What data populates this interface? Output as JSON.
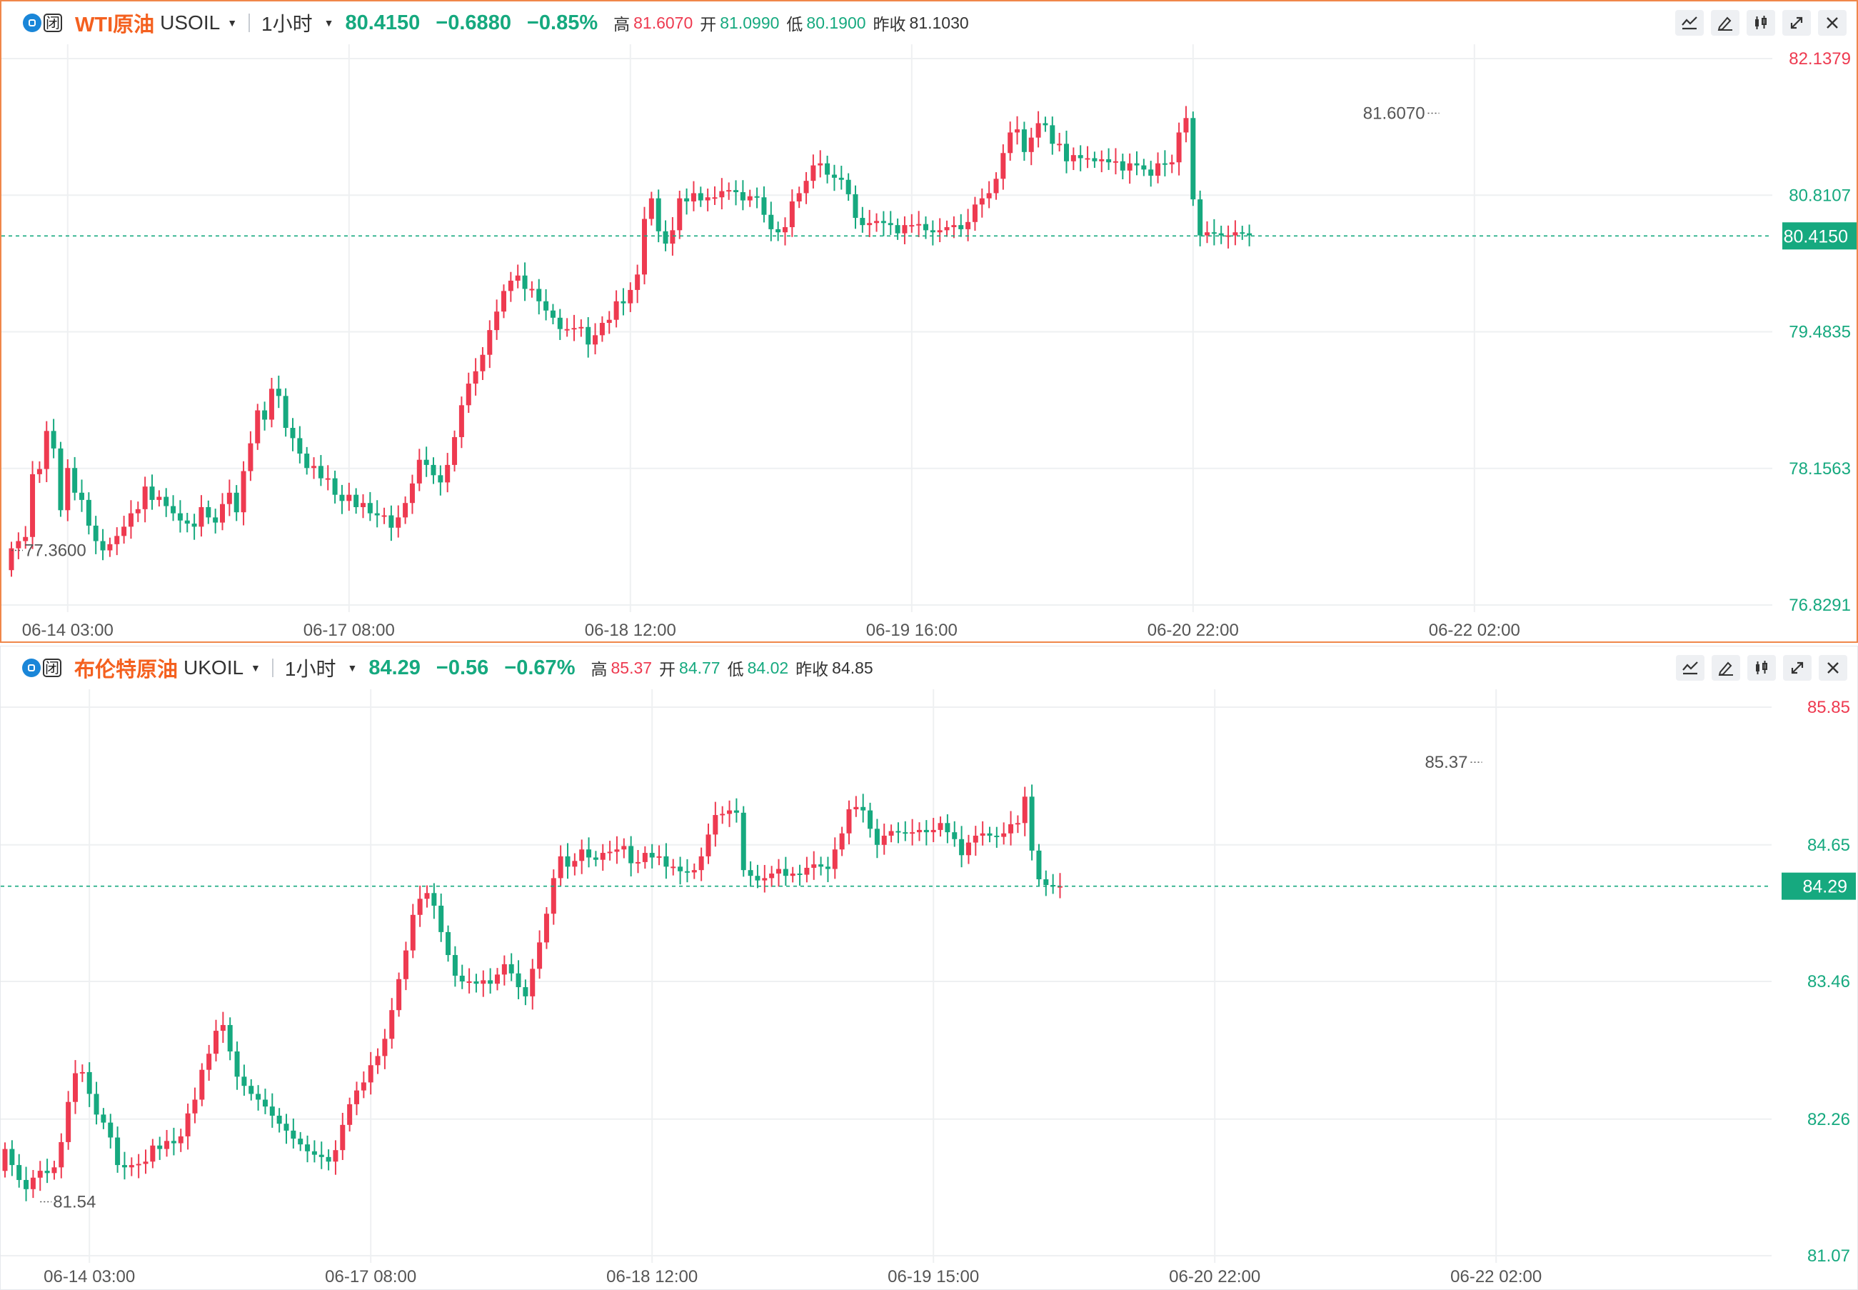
{
  "colors": {
    "up": "#ee3a50",
    "down": "#16a97f",
    "accent": "#f4601f",
    "grid": "#eef0f2",
    "hline": "#16a97f"
  },
  "badge": {
    "status_text": "闭",
    "icon": "market-status-icon"
  },
  "toolbar_icons": [
    "indicator-icon",
    "draw-pen-icon",
    "candlestick-type-icon",
    "expand-icon",
    "close-icon"
  ],
  "panels": [
    {
      "name": "WTI原油",
      "symbol": "USOIL",
      "interval": "1小时",
      "price": "80.4150",
      "change": "−0.6880",
      "change_pct": "−0.85%",
      "stats": [
        {
          "label": "高",
          "value": "81.6070",
          "tone": "red"
        },
        {
          "label": "开",
          "value": "81.0990",
          "tone": "green"
        },
        {
          "label": "低",
          "value": "80.1900",
          "tone": "green"
        },
        {
          "label": "昨收",
          "value": "81.1030",
          "tone": "gray"
        }
      ]
    },
    {
      "name": "布伦特原油",
      "symbol": "UKOIL",
      "interval": "1小时",
      "price": "84.29",
      "change": "−0.56",
      "change_pct": "−0.67%",
      "stats": [
        {
          "label": "高",
          "value": "85.37",
          "tone": "red"
        },
        {
          "label": "开",
          "value": "84.77",
          "tone": "green"
        },
        {
          "label": "低",
          "value": "84.02",
          "tone": "green"
        },
        {
          "label": "昨收",
          "value": "84.85",
          "tone": "gray"
        }
      ]
    }
  ],
  "chart_data": [
    {
      "type": "candlestick",
      "symbol": "USOIL",
      "ylim": [
        76.8291,
        82.1379
      ],
      "y_ticks": [
        "82.1379",
        "80.8107",
        "79.4835",
        "78.1563",
        "76.8291"
      ],
      "x_ticks": [
        "06-14 03:00",
        "06-17 08:00",
        "06-18 12:00",
        "06-19 16:00",
        "06-20 22:00",
        "06-22 02:00"
      ],
      "x_tick_index": [
        8,
        48,
        88,
        128,
        168,
        208
      ],
      "current_price": "80.4150",
      "annotated_high": "81.6070",
      "annotated_high_index": 203,
      "annotated_low": "77.3600",
      "annotated_low_index": 0,
      "close": [
        77.38,
        77.45,
        77.49,
        78.1,
        78.15,
        78.52,
        78.35,
        77.75,
        78.16,
        77.92,
        77.85,
        77.6,
        77.45,
        77.36,
        77.42,
        77.5,
        77.59,
        77.72,
        77.76,
        77.98,
        77.85,
        77.88,
        77.79,
        77.72,
        77.65,
        77.62,
        77.59,
        77.78,
        77.68,
        77.63,
        77.81,
        77.92,
        77.73,
        78.13,
        78.4,
        78.72,
        78.63,
        78.93,
        78.86,
        78.55,
        78.45,
        78.3,
        78.16,
        78.18,
        78.06,
        78.06,
        77.9,
        77.84,
        77.9,
        77.78,
        77.82,
        77.72,
        77.7,
        77.7,
        77.58,
        77.68,
        77.82,
        78.01,
        78.24,
        78.19,
        78.09,
        78.02,
        78.19,
        78.46,
        78.77,
        78.98,
        79.1,
        79.26,
        79.5,
        79.68,
        79.88,
        79.98,
        80.03,
        79.9,
        79.9,
        79.78,
        79.69,
        79.62,
        79.51,
        79.51,
        79.52,
        79.53,
        79.36,
        79.45,
        79.57,
        79.6,
        79.78,
        79.76,
        79.89,
        80.04,
        80.58,
        80.78,
        80.46,
        80.34,
        80.47,
        80.78,
        80.75,
        80.83,
        80.76,
        80.79,
        80.79,
        80.85,
        80.86,
        80.84,
        80.76,
        80.8,
        80.79,
        80.62,
        80.48,
        80.45,
        80.5,
        80.75,
        80.83,
        80.95,
        81.1,
        81.12,
        81.01,
        80.98,
        80.96,
        80.82,
        80.59,
        80.52,
        80.54,
        80.56,
        80.54,
        80.52,
        80.44,
        80.52,
        80.52,
        80.53,
        80.47,
        80.45,
        80.47,
        80.5,
        80.52,
        80.48,
        80.55,
        80.72,
        80.78,
        80.83,
        80.97,
        81.22,
        81.42,
        81.45,
        81.23,
        81.37,
        81.51,
        81.49,
        81.31,
        81.31,
        81.14,
        81.2,
        81.17,
        81.17,
        81.14,
        81.16,
        81.13,
        81.14,
        81.05,
        81.12,
        81.1,
        81.06,
        81.0,
        81.12,
        81.11,
        81.13,
        81.42,
        81.56,
        80.77,
        80.42,
        80.45,
        80.44,
        80.42,
        80.42,
        80.45,
        80.44,
        80.42
      ]
    },
    {
      "type": "candlestick",
      "symbol": "UKOIL",
      "ylim": [
        81.07,
        85.85
      ],
      "y_ticks": [
        "85.85",
        "84.65",
        "83.46",
        "82.26",
        "81.07"
      ],
      "x_ticks": [
        "06-14 03:00",
        "06-17 08:00",
        "06-18 12:00",
        "06-19 15:00",
        "06-20 22:00",
        "06-22 02:00"
      ],
      "x_tick_index": [
        12,
        52,
        92,
        132,
        172,
        212
      ],
      "current_price": "84.29",
      "annotated_high": "85.37",
      "annotated_high_index": 210,
      "annotated_low": "81.54",
      "annotated_low_index": 5,
      "close": [
        82.0,
        81.86,
        81.73,
        81.65,
        81.75,
        81.81,
        81.79,
        81.84,
        82.06,
        82.41,
        82.66,
        82.67,
        82.48,
        82.3,
        82.23,
        82.1,
        81.86,
        81.84,
        81.86,
        81.87,
        81.89,
        82.03,
        82.0,
        82.07,
        82.05,
        82.11,
        82.31,
        82.43,
        82.69,
        82.83,
        83.03,
        83.08,
        82.85,
        82.63,
        82.55,
        82.48,
        82.43,
        82.37,
        82.29,
        82.22,
        82.16,
        82.09,
        82.04,
        81.98,
        81.95,
        81.93,
        81.89,
        81.99,
        82.21,
        82.39,
        82.51,
        82.58,
        82.73,
        82.81,
        82.96,
        83.21,
        83.48,
        83.73,
        84.04,
        84.18,
        84.23,
        84.12,
        83.89,
        83.69,
        83.51,
        83.46,
        83.46,
        83.44,
        83.47,
        83.44,
        83.52,
        83.61,
        83.53,
        83.41,
        83.33,
        83.57,
        83.8,
        84.05,
        84.36,
        84.55,
        84.46,
        84.51,
        84.61,
        84.54,
        84.52,
        84.58,
        84.59,
        84.61,
        84.64,
        84.49,
        84.5,
        84.58,
        84.54,
        84.55,
        84.46,
        84.46,
        84.42,
        84.41,
        84.43,
        84.55,
        84.74,
        84.91,
        84.92,
        84.95,
        84.93,
        84.43,
        84.38,
        84.34,
        84.36,
        84.4,
        84.44,
        84.38,
        84.4,
        84.39,
        84.45,
        84.48,
        84.46,
        84.44,
        84.61,
        84.75,
        84.96,
        84.98,
        84.95,
        84.79,
        84.65,
        84.73,
        84.77,
        84.76,
        84.75,
        84.76,
        84.78,
        84.76,
        84.78,
        84.84,
        84.76,
        84.7,
        84.56,
        84.67,
        84.73,
        84.75,
        84.73,
        84.72,
        84.75,
        84.83,
        84.84,
        85.07,
        84.6,
        84.35,
        84.3,
        84.29,
        84.29
      ]
    }
  ]
}
